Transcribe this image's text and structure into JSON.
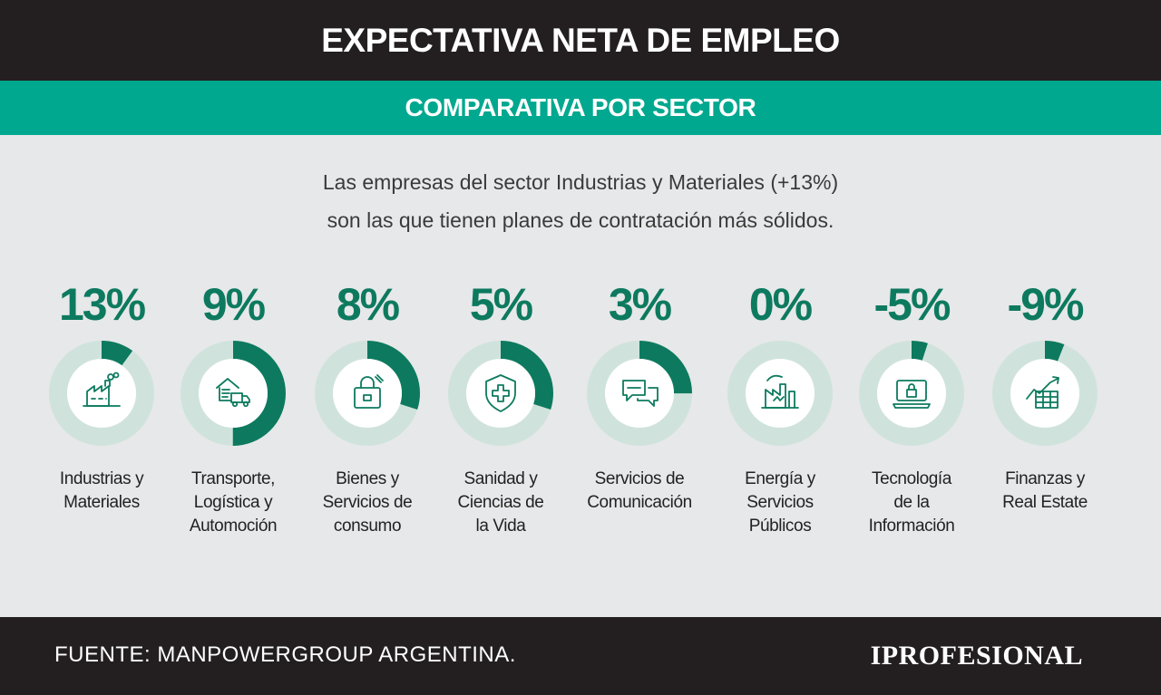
{
  "header": {
    "title": "EXPECTATIVA NETA DE EMPLEO",
    "subtitle": "COMPARATIVA POR SECTOR"
  },
  "intro": {
    "line1": "Las empresas del sector Industrias y Materiales (+13%)",
    "line2": "son las que tienen planes de contratación más sólidos."
  },
  "colors": {
    "accent": "#0d7a5f",
    "ring": "#cfe3dc",
    "icon": "#0d7a5f"
  },
  "chart_data": {
    "type": "pie",
    "title": "EXPECTATIVA NETA DE EMPLEO",
    "subtitle": "COMPARATIVA POR SECTOR",
    "series": [
      {
        "label_lines": [
          "Industrias y",
          "Materiales"
        ],
        "value": 13,
        "display": "13%",
        "icon": "factory-icon"
      },
      {
        "label_lines": [
          "Transporte,",
          "Logística y",
          "Automoción"
        ],
        "value": 9,
        "display": "9%",
        "icon": "truck-warehouse-icon"
      },
      {
        "label_lines": [
          "Bienes y",
          "Servicios de",
          "consumo"
        ],
        "value": 8,
        "display": "8%",
        "icon": "shopping-bag-icon"
      },
      {
        "label_lines": [
          "Sanidad y",
          "Ciencias de",
          "la Vida"
        ],
        "value": 5,
        "display": "5%",
        "icon": "medical-shield-icon"
      },
      {
        "label_lines": [
          "Servicios de",
          "Comunicación"
        ],
        "value": 3,
        "display": "3%",
        "icon": "chat-bubbles-icon"
      },
      {
        "label_lines": [
          "Energía y",
          "Servicios",
          "Públicos"
        ],
        "value": 0,
        "display": "0%",
        "icon": "energy-plant-icon"
      },
      {
        "label_lines": [
          "Tecnología",
          "de la",
          "Información"
        ],
        "value": -5,
        "display": "-5%",
        "icon": "laptop-lock-icon"
      },
      {
        "label_lines": [
          "Finanzas y",
          "Real Estate"
        ],
        "value": -9,
        "display": "-9%",
        "icon": "finance-chart-icon"
      }
    ],
    "ring_fractions": [
      0.1,
      0.5,
      0.3,
      0.3,
      0.25,
      0.0,
      0.05,
      0.06
    ]
  },
  "footer": {
    "source": "FUENTE: MANPOWERGROUP ARGENTINA.",
    "logo": "IPROFESIONAL"
  }
}
